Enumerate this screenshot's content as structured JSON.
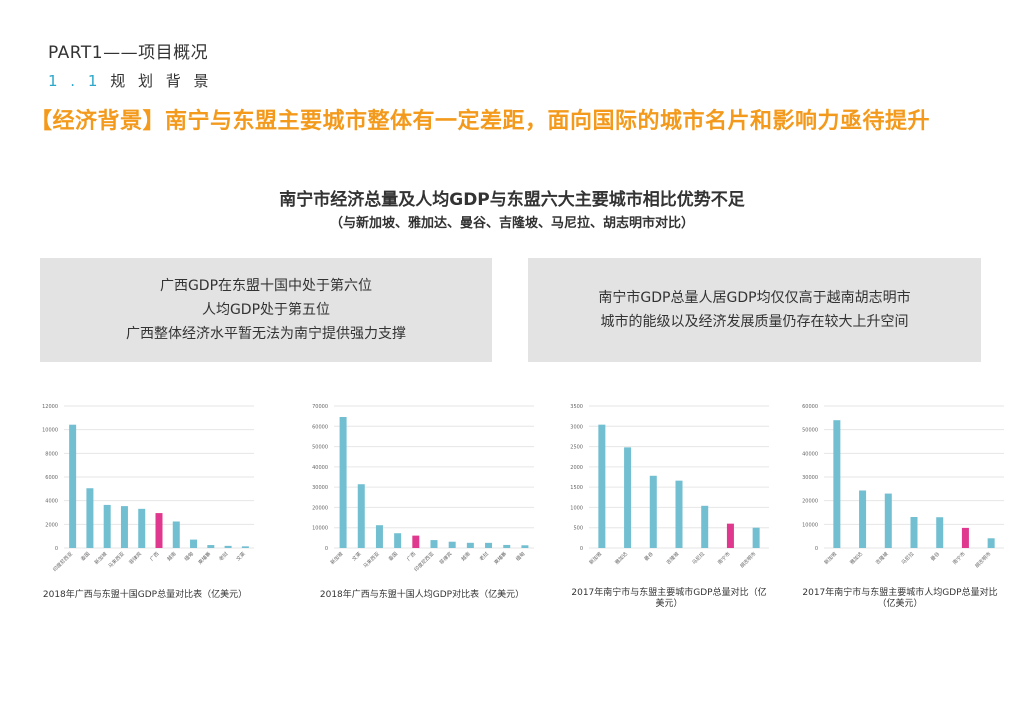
{
  "header": {
    "part_title": "PART1——项目概况",
    "section_num": "1 . 1",
    "section_title": "规 划 背 景",
    "headline": "【经济背景】南宁与东盟主要城市整体有一定差距，面向国际的城市名片和影响力亟待提升"
  },
  "chart_heading": "南宁市经济总量及人均GDP与东盟六大主要城市相比优势不足",
  "chart_subheading": "（与新加坡、雅加达、曼谷、吉隆坡、马尼拉、胡志明市对比）",
  "box_left": {
    "line1": "广西GDP在东盟十国中处于第六位",
    "line2": "人均GDP处于第五位",
    "line3": "广西整体经济水平暂无法为南宁提供强力支撑"
  },
  "box_right": {
    "line1": "南宁市GDP总量人居GDP均仅仅高于越南胡志明市",
    "line2": "城市的能级以及经济发展质量仍存在较大上升空间"
  },
  "colors": {
    "bar": "#72bfd1",
    "highlight": "#e0388e",
    "grid": "#e6e6e6",
    "axis_text": "#666666",
    "headline": "#f39a1c",
    "accent": "#2aa7c9"
  },
  "chart_data": [
    {
      "type": "bar",
      "title": "2018年广西与东盟十国GDP总量对比表（亿美元）",
      "categories": [
        "印度尼西亚",
        "泰国",
        "新加坡",
        "马来西亚",
        "菲律宾",
        "广西",
        "越南",
        "缅甸",
        "柬埔寨",
        "老挝",
        "文莱"
      ],
      "values": [
        10420,
        5050,
        3640,
        3540,
        3310,
        2950,
        2240,
        710,
        250,
        180,
        140
      ],
      "highlight": "广西",
      "ylim": [
        0,
        12000
      ],
      "yticks": [
        0,
        2000,
        4000,
        6000,
        8000,
        10000,
        12000
      ],
      "grid": true
    },
    {
      "type": "bar",
      "title": "2018年广西与东盟十国人均GDP对比表（亿美元）",
      "categories": [
        "新加坡",
        "文莱",
        "马来西亚",
        "泰国",
        "广西",
        "印度尼西亚",
        "菲律宾",
        "越南",
        "老挝",
        "柬埔寨",
        "缅甸"
      ],
      "values": [
        64580,
        31440,
        11240,
        7280,
        6100,
        3900,
        3100,
        2560,
        2540,
        1510,
        1330
      ],
      "highlight": "广西",
      "ylim": [
        0,
        70000
      ],
      "yticks": [
        0,
        10000,
        20000,
        30000,
        40000,
        50000,
        60000,
        70000
      ],
      "grid": true
    },
    {
      "type": "bar",
      "title": "2017年南宁市与东盟主要城市GDP总量对比（亿美元）",
      "categories": [
        "新加坡",
        "雅加达",
        "曼谷",
        "吉隆坡",
        "马尼拉",
        "南宁市",
        "胡志明市"
      ],
      "values": [
        3040,
        2480,
        1780,
        1660,
        1040,
        600,
        500
      ],
      "highlight": "南宁市",
      "ylim": [
        0,
        3500
      ],
      "yticks": [
        0,
        500,
        1000,
        1500,
        2000,
        2500,
        3000,
        3500
      ],
      "grid": true
    },
    {
      "type": "bar",
      "title": "2017年南宁市与东盟主要城市人均GDP总量对比（亿美元）",
      "categories": [
        "新加坡",
        "雅加达",
        "吉隆坡",
        "马尼拉",
        "曼谷",
        "南宁市",
        "胡志明市"
      ],
      "values": [
        54000,
        24300,
        23000,
        13100,
        13000,
        8500,
        4100
      ],
      "highlight": "南宁市",
      "ylim": [
        0,
        60000
      ],
      "yticks": [
        0,
        10000,
        20000,
        30000,
        40000,
        50000,
        60000
      ],
      "grid": true
    }
  ]
}
